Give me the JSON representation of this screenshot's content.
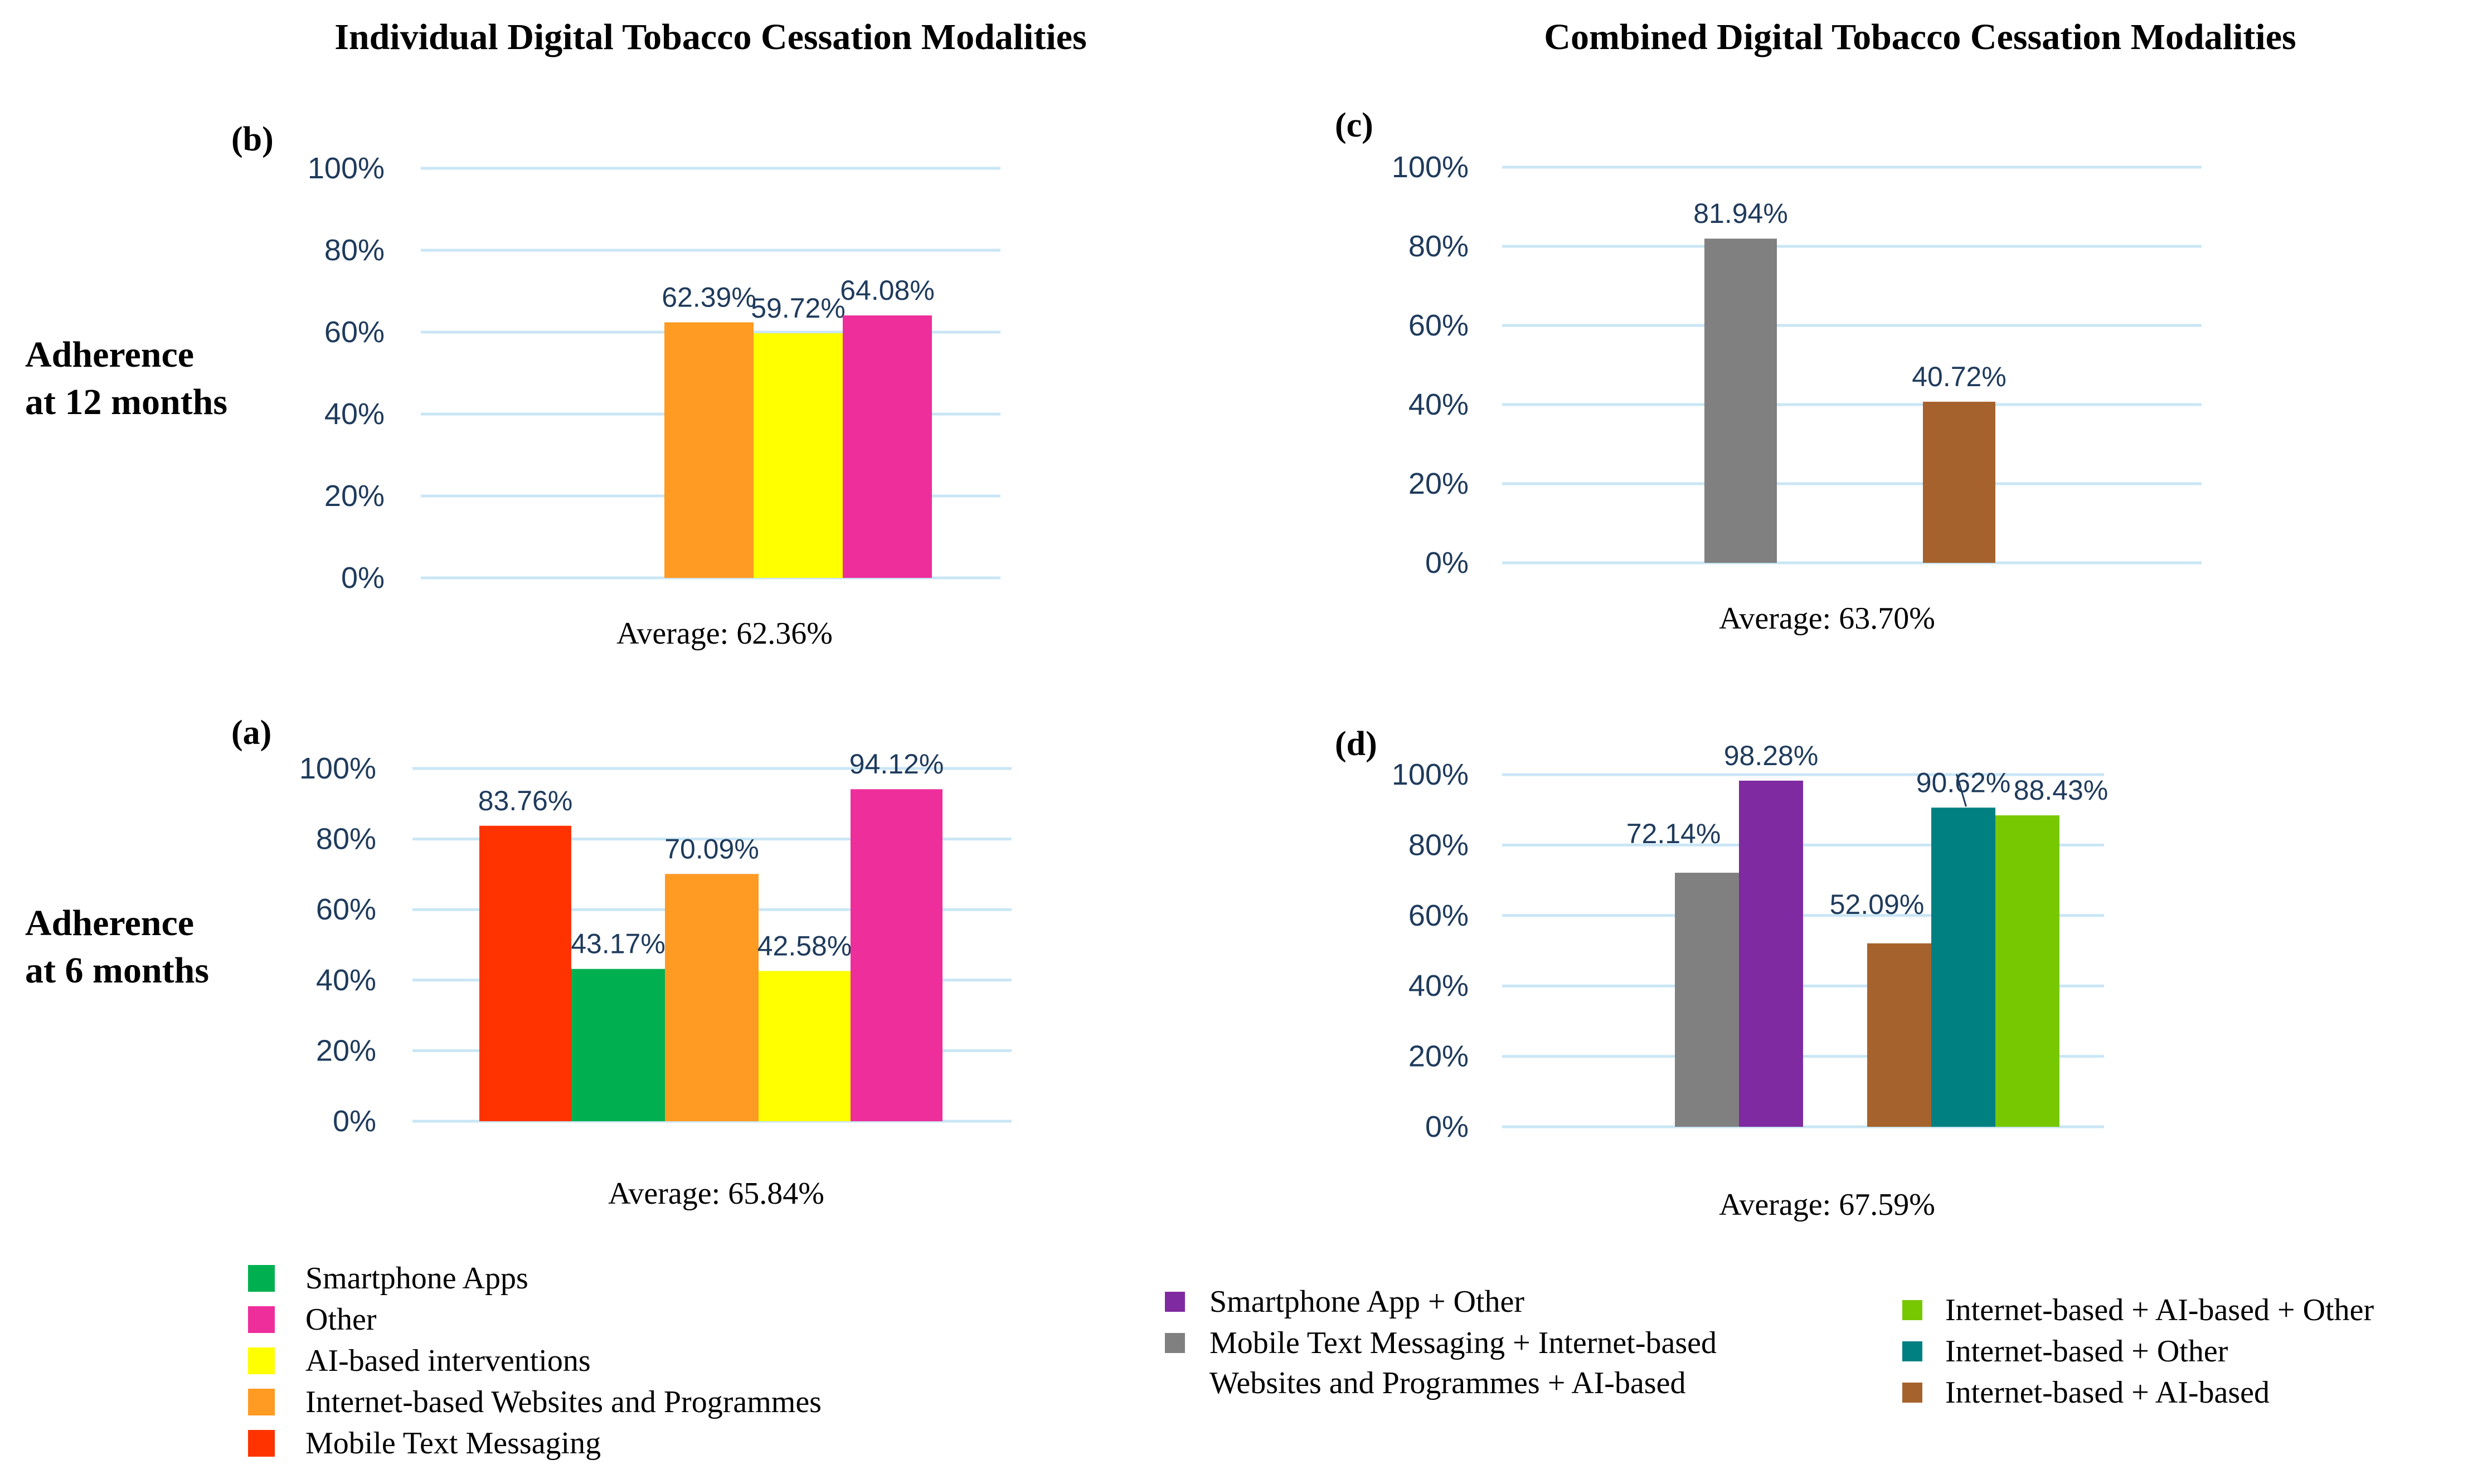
{
  "column_titles": {
    "left": "Individual Digital Tobacco Cessation Modalities",
    "right": "Combined Digital Tobacco Cessation Modalities"
  },
  "row_labels": {
    "top": [
      "Adherence",
      "at 12 months"
    ],
    "bottom": [
      "Adherence",
      "at 6 months"
    ]
  },
  "colors": {
    "Mobile Text Messaging": "#ff3300",
    "Smartphone Apps": "#00b050",
    "Internet-based Websites and Programmes": "#ff9a22",
    "AI-based interventions": "#ffff00",
    "Other": "#ee2e9b",
    "Mobile Text Messaging + Internet-based Websites and Programmes + AI-based": "#808080",
    "Smartphone App + Other": "#7f2aa1",
    "Internet-based + AI-based": "#a6622c",
    "Internet-based + Other": "#008080",
    "Internet-based + AI-based + Other": "#77c800"
  },
  "chart_data": [
    {
      "panel": "(b)",
      "type": "bar",
      "ylim": [
        0,
        100
      ],
      "yticks": [
        "0%",
        "20%",
        "40%",
        "60%",
        "80%",
        "100%"
      ],
      "series": [
        {
          "name": "Internet-based Websites and Programmes",
          "value": 62.39,
          "label": "62.39%"
        },
        {
          "name": "AI-based interventions",
          "value": 59.72,
          "label": "59.72%"
        },
        {
          "name": "Other",
          "value": 64.08,
          "label": "64.08%"
        }
      ],
      "average": "Average: 62.36%"
    },
    {
      "panel": "(a)",
      "type": "bar",
      "ylim": [
        0,
        100
      ],
      "yticks": [
        "0%",
        "20%",
        "40%",
        "60%",
        "80%",
        "100%"
      ],
      "series": [
        {
          "name": "Mobile Text Messaging",
          "value": 83.76,
          "label": "83.76%"
        },
        {
          "name": "Smartphone Apps",
          "value": 43.17,
          "label": "43.17%"
        },
        {
          "name": "Internet-based Websites and Programmes",
          "value": 70.09,
          "label": "70.09%"
        },
        {
          "name": "AI-based interventions",
          "value": 42.58,
          "label": "42.58%"
        },
        {
          "name": "Other",
          "value": 94.12,
          "label": "94.12%"
        }
      ],
      "average": "Average: 65.84%"
    },
    {
      "panel": "(c)",
      "type": "bar",
      "ylim": [
        0,
        100
      ],
      "yticks": [
        "0%",
        "20%",
        "40%",
        "60%",
        "80%",
        "100%"
      ],
      "series": [
        {
          "name": "Mobile Text Messaging + Internet-based Websites and Programmes + AI-based",
          "value": 81.94,
          "label": "81.94%"
        },
        {
          "name": "Internet-based + AI-based",
          "value": 40.72,
          "label": "40.72%"
        }
      ],
      "average": "Average: 63.70%"
    },
    {
      "panel": "(d)",
      "type": "bar",
      "ylim": [
        0,
        100
      ],
      "yticks": [
        "0%",
        "20%",
        "40%",
        "60%",
        "80%",
        "100%"
      ],
      "series": [
        {
          "name": "Mobile Text Messaging + Internet-based Websites and Programmes + AI-based",
          "value": 72.14,
          "label": "72.14%"
        },
        {
          "name": "Smartphone App + Other",
          "value": 98.28,
          "label": "98.28%"
        },
        {
          "name": "Internet-based + AI-based",
          "value": 52.09,
          "label": "52.09%"
        },
        {
          "name": "Internet-based + Other",
          "value": 90.62,
          "label": "90.62%"
        },
        {
          "name": "Internet-based + AI-based + Other",
          "value": 88.43,
          "label": "88.43%"
        }
      ],
      "average": "Average: 67.59%"
    }
  ],
  "legend_left": [
    "Smartphone Apps",
    "Other",
    "AI-based interventions",
    "Internet-based Websites and Programmes",
    "Mobile Text Messaging"
  ],
  "legend_right_a": [
    {
      "key": "Smartphone App + Other",
      "lines": [
        "Smartphone App + Other"
      ]
    },
    {
      "key": "Mobile Text Messaging + Internet-based Websites and Programmes + AI-based",
      "lines": [
        "Mobile Text Messaging + Internet-based",
        "Websites and Programmes + AI-based"
      ]
    }
  ],
  "legend_right_b": [
    {
      "key": "Internet-based + AI-based + Other",
      "lines": [
        "Internet-based + AI-based + Other"
      ]
    },
    {
      "key": "Internet-based + Other",
      "lines": [
        "Internet-based + Other"
      ]
    },
    {
      "key": "Internet-based + AI-based",
      "lines": [
        "Internet-based + AI-based"
      ]
    }
  ]
}
